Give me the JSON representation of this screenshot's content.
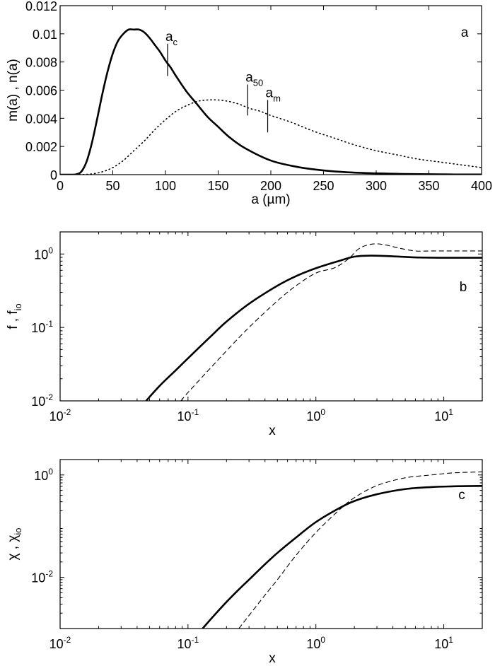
{
  "figure": {
    "panels": [
      "a",
      "b",
      "c"
    ]
  },
  "chart_data": [
    {
      "panel": "a",
      "type": "line",
      "title": "",
      "xlabel": "a (µm)",
      "ylabel": "m(a) , n(a)",
      "xlim": [
        0,
        400
      ],
      "ylim": [
        0,
        0.012
      ],
      "xticks": [
        0,
        50,
        100,
        150,
        200,
        250,
        300,
        350,
        400
      ],
      "xtick_labels": [
        "0",
        "50",
        "100",
        "150",
        "200",
        "250",
        "300",
        "350",
        "400"
      ],
      "yticks": [
        0,
        0.002,
        0.004,
        0.006,
        0.008,
        0.01,
        0.012
      ],
      "ytick_labels": [
        "0",
        "0.002",
        "0.004",
        "0.006",
        "0.008",
        "0.01",
        "0.012"
      ],
      "grid": false,
      "series": [
        {
          "name": "n(a)",
          "style": "solid",
          "x": [
            0,
            10,
            15,
            20,
            25,
            30,
            35,
            40,
            45,
            50,
            55,
            60,
            65,
            70,
            75,
            80,
            85,
            90,
            95,
            100,
            105,
            110,
            120,
            130,
            140,
            150,
            160,
            175,
            200,
            225,
            250,
            275,
            300,
            325,
            350,
            375,
            400
          ],
          "y": [
            0,
            0,
            2e-05,
            0.0002,
            0.0009,
            0.0022,
            0.0039,
            0.0057,
            0.0073,
            0.0086,
            0.0095,
            0.01,
            0.0103,
            0.0103,
            0.0103,
            0.0101,
            0.0097,
            0.0092,
            0.0087,
            0.0081,
            0.0076,
            0.007,
            0.0059,
            0.005,
            0.0041,
            0.0034,
            0.0027,
            0.0019,
            0.001,
            0.00055,
            0.0003,
            0.00016,
            9e-05,
            5e-05,
            3e-05,
            1e-05,
            1e-05
          ]
        },
        {
          "name": "m(a)",
          "style": "dotted",
          "x": [
            0,
            20,
            30,
            40,
            50,
            60,
            70,
            80,
            90,
            100,
            110,
            120,
            130,
            140,
            150,
            160,
            170,
            180,
            190,
            200,
            220,
            240,
            260,
            280,
            300,
            320,
            340,
            360,
            380,
            400
          ],
          "y": [
            0,
            1e-05,
            5e-05,
            0.0002,
            0.0005,
            0.001,
            0.0017,
            0.0024,
            0.0032,
            0.0039,
            0.0045,
            0.0049,
            0.0052,
            0.0053,
            0.0053,
            0.0052,
            0.005,
            0.0047,
            0.0045,
            0.0042,
            0.0037,
            0.0031,
            0.0026,
            0.0021,
            0.0017,
            0.0014,
            0.0011,
            0.0009,
            0.0007,
            0.0005
          ]
        }
      ],
      "annotations": [
        {
          "label": "a",
          "subscript": "c",
          "x": 102,
          "y_range": [
            0.007,
            0.0093
          ]
        },
        {
          "label": "a",
          "subscript": "50",
          "x": 178,
          "y_range": [
            0.0042,
            0.0064
          ]
        },
        {
          "label": "a",
          "subscript": "m",
          "x": 197,
          "y_range": [
            0.003,
            0.0053
          ]
        }
      ],
      "panel_label": "a"
    },
    {
      "panel": "b",
      "type": "line",
      "title": "",
      "xlabel": "x",
      "ylabel": "f , f_io",
      "xscale": "log",
      "yscale": "log",
      "xlim": [
        0.01,
        20
      ],
      "ylim": [
        0.01,
        2.0
      ],
      "xticks": [
        0.01,
        0.1,
        1,
        10
      ],
      "xtick_labels": [
        "10^-2",
        "10^-1",
        "10^0",
        "10^1"
      ],
      "yticks": [
        0.01,
        0.1,
        1
      ],
      "ytick_labels": [
        "10^-2",
        "10^-1",
        "10^0"
      ],
      "grid": false,
      "series": [
        {
          "name": "f",
          "style": "solid",
          "x": [
            0.047,
            0.06,
            0.08,
            0.1,
            0.15,
            0.2,
            0.3,
            0.5,
            0.7,
            1.0,
            1.5,
            2.0,
            2.7,
            4.0,
            6.0,
            10,
            20
          ],
          "y": [
            0.01,
            0.016,
            0.026,
            0.038,
            0.075,
            0.12,
            0.21,
            0.37,
            0.5,
            0.64,
            0.8,
            0.92,
            0.95,
            0.93,
            0.9,
            0.89,
            0.89
          ]
        },
        {
          "name": "f_io",
          "style": "dashed",
          "x": [
            0.088,
            0.1,
            0.15,
            0.2,
            0.3,
            0.5,
            0.7,
            1.0,
            1.4,
            1.8,
            2.2,
            2.8,
            3.5,
            4.5,
            6.0,
            8.0,
            12,
            20
          ],
          "y": [
            0.01,
            0.013,
            0.028,
            0.048,
            0.1,
            0.23,
            0.37,
            0.55,
            0.65,
            0.86,
            1.2,
            1.37,
            1.33,
            1.2,
            1.1,
            1.1,
            1.1,
            1.1
          ]
        }
      ],
      "panel_label": "b"
    },
    {
      "panel": "c",
      "type": "line",
      "title": "",
      "xlabel": "x",
      "ylabel": "χ , χ_io",
      "xscale": "log",
      "yscale": "log",
      "xlim": [
        0.01,
        20
      ],
      "ylim": [
        0.001,
        2.0
      ],
      "xticks": [
        0.01,
        0.1,
        1,
        10
      ],
      "xtick_labels": [
        "10^-2",
        "10^-1",
        "10^0",
        "10^1"
      ],
      "yticks": [
        0.01,
        1
      ],
      "ytick_labels": [
        "10^-2",
        "10^0"
      ],
      "grid": false,
      "series": [
        {
          "name": "χ",
          "style": "solid",
          "x": [
            0.13,
            0.16,
            0.2,
            0.25,
            0.3,
            0.4,
            0.5,
            0.7,
            1.0,
            1.5,
            2.0,
            3.0,
            5.0,
            8.0,
            12,
            20
          ],
          "y": [
            0.001,
            0.0018,
            0.0033,
            0.0058,
            0.009,
            0.018,
            0.03,
            0.06,
            0.12,
            0.22,
            0.31,
            0.42,
            0.53,
            0.58,
            0.6,
            0.61
          ]
        },
        {
          "name": "χ_io",
          "style": "dashed",
          "x": [
            0.25,
            0.3,
            0.4,
            0.5,
            0.7,
            1.0,
            1.5,
            2.0,
            3.0,
            5.0,
            8.0,
            12,
            20
          ],
          "y": [
            0.001,
            0.0018,
            0.0045,
            0.009,
            0.027,
            0.075,
            0.2,
            0.36,
            0.62,
            0.88,
            1.0,
            1.1,
            1.15
          ]
        }
      ],
      "panel_label": "c"
    }
  ]
}
